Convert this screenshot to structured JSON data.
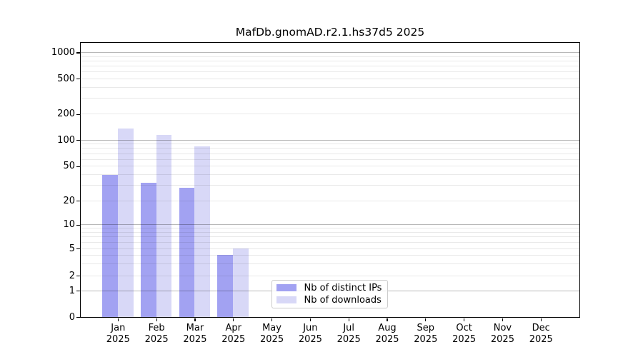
{
  "chart_data": {
    "type": "bar",
    "title": "MafDb.gnomAD.r2.1.hs37d5 2025",
    "year": "2025",
    "months": [
      "Jan",
      "Feb",
      "Mar",
      "Apr",
      "May",
      "Jun",
      "Jul",
      "Aug",
      "Sep",
      "Oct",
      "Nov",
      "Dec"
    ],
    "categories": [
      "Jan 2025",
      "Feb 2025",
      "Mar 2025",
      "Apr 2025",
      "May 2025",
      "Jun 2025",
      "Jul 2025",
      "Aug 2025",
      "Sep 2025",
      "Oct 2025",
      "Nov 2025",
      "Dec 2025"
    ],
    "series": [
      {
        "name": "Nb of distinct IPs",
        "color": "#a2a2f2",
        "values": [
          40,
          32,
          28,
          4,
          0,
          0,
          0,
          0,
          0,
          0,
          0,
          0
        ]
      },
      {
        "name": "Nb of downloads",
        "color": "#d8d8f7",
        "values": [
          137,
          115,
          85,
          5,
          0,
          0,
          0,
          0,
          0,
          0,
          0,
          0
        ]
      }
    ],
    "yscale": "log",
    "yticks": [
      0,
      1,
      2,
      5,
      10,
      20,
      50,
      100,
      200,
      500,
      1000
    ],
    "ylim": [
      0,
      1300
    ],
    "grid": true,
    "legend_position": "inside-bottom-center"
  },
  "colors": {
    "distinct_ips": "#a2a2f2",
    "downloads": "#d8d8f7",
    "grid_major": "#b8b8b8",
    "grid_minor": "#e9e9e9",
    "axis": "#000000",
    "background": "#ffffff"
  }
}
